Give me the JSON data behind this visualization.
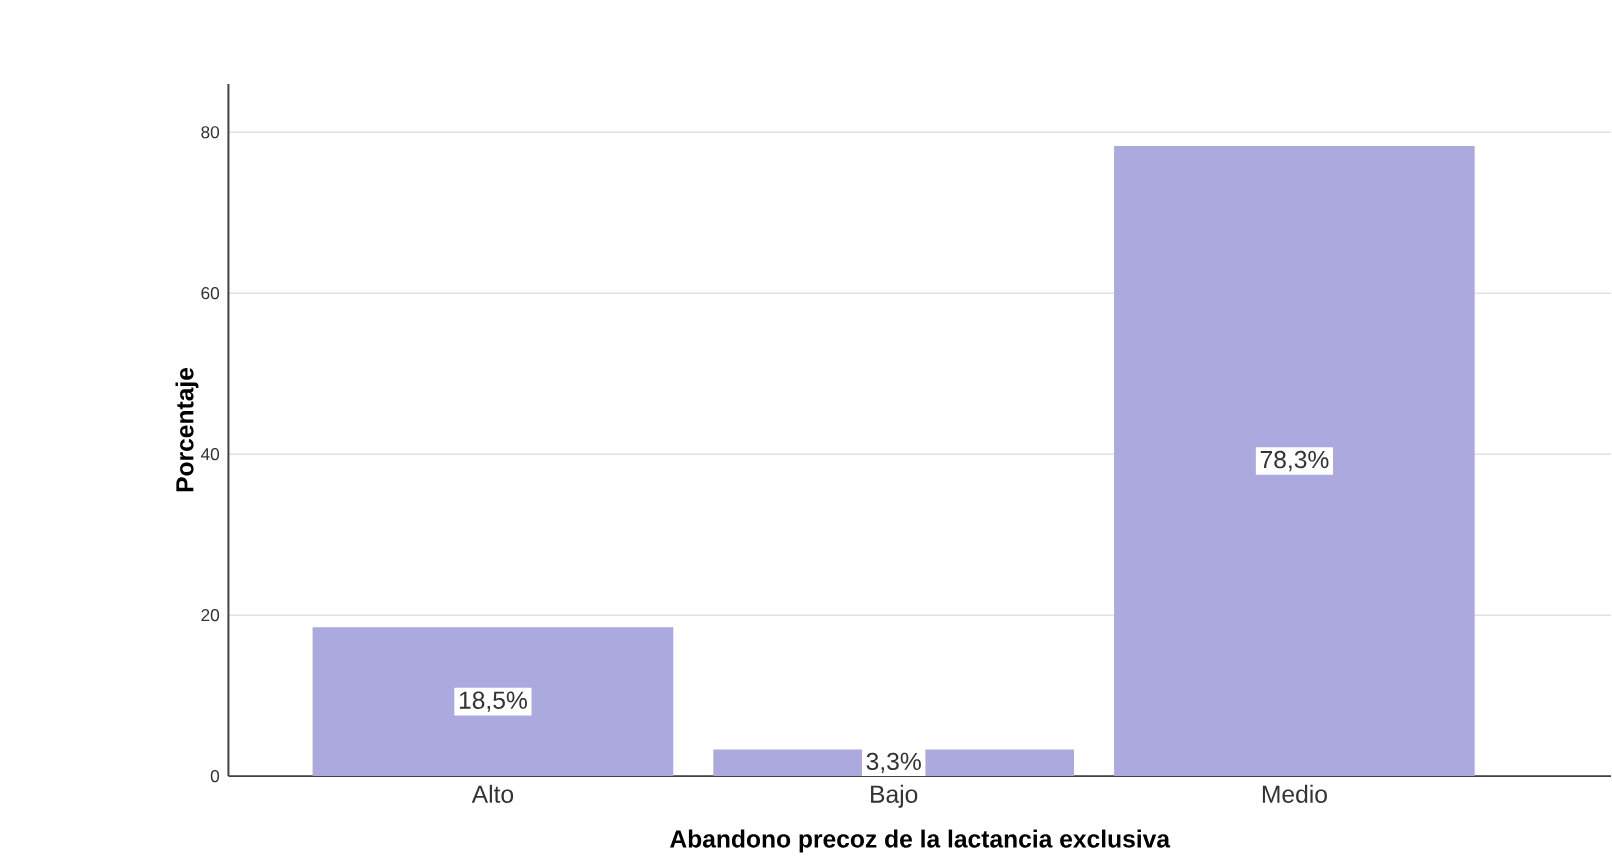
{
  "chart_data": {
    "type": "bar",
    "xlabel": "Abandono precoz de la lactancia exclusiva",
    "ylabel": "Porcentaje",
    "categories": [
      "Alto",
      "Bajo",
      "Medio"
    ],
    "values": [
      18.5,
      3.3,
      78.3
    ],
    "value_labels": [
      "18,5%",
      "3,3%",
      "78,3%"
    ],
    "color": "#aba9de",
    "ylim": [
      0,
      86
    ],
    "yticks": [
      0,
      20,
      40,
      60,
      80
    ],
    "grid": "y"
  }
}
